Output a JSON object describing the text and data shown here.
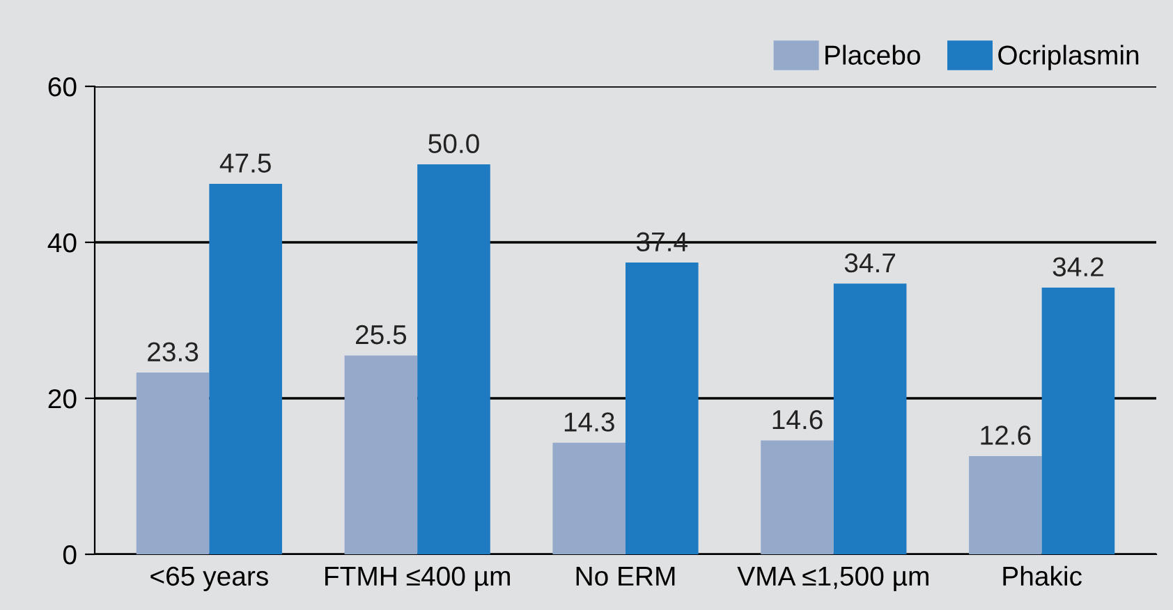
{
  "chart_data": {
    "type": "bar",
    "categories": [
      "<65 years",
      "FTMH ≤400 µm",
      "No ERM",
      "VMA ≤1,500 µm",
      "Phakic"
    ],
    "series": [
      {
        "name": "Placebo",
        "color": "#95a9cb",
        "values": [
          23.3,
          25.5,
          14.3,
          14.6,
          12.6
        ],
        "value_labels": [
          "23.3",
          "25.5",
          "14.3",
          "14.6",
          "12.6"
        ]
      },
      {
        "name": "Ocriplasmin",
        "color": "#1f7bc1",
        "values": [
          47.5,
          50.0,
          37.4,
          34.7,
          34.2
        ],
        "value_labels": [
          "47.5",
          "50.0",
          "37.4",
          "34.7",
          "34.2"
        ]
      }
    ],
    "ylim": [
      0,
      60
    ],
    "yticks": [
      0,
      20,
      40,
      60
    ],
    "grid": "y",
    "legend": "top right"
  }
}
